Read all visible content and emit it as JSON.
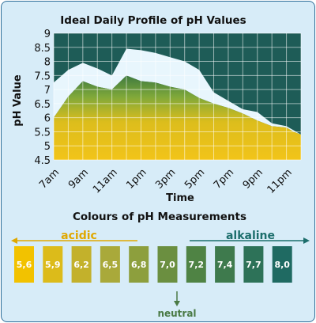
{
  "chart_data": {
    "type": "area",
    "title": "Ideal Daily Profile of pH Values",
    "xlabel": "Time",
    "ylabel": "pH Value",
    "ylim": [
      4.5,
      9
    ],
    "yticks": [
      "4.5",
      "5",
      "5.5",
      "6",
      "6.5",
      "7",
      "7.5",
      "8",
      "8.5",
      "9"
    ],
    "xticks": [
      "7am",
      "9am",
      "11am",
      "1pm",
      "3pm",
      "5pm",
      "7pm",
      "9pm",
      "11pm"
    ],
    "grid": true,
    "x_hours": [
      7,
      8,
      9,
      10,
      11,
      12,
      13,
      14,
      15,
      16,
      17,
      18,
      19,
      20,
      21,
      22,
      23,
      23.5,
      24
    ],
    "series": [
      {
        "name": "",
        "values": [
          7.25,
          7.7,
          7.95,
          7.75,
          7.5,
          8.45,
          8.4,
          8.3,
          8.15,
          8.0,
          7.7,
          6.9,
          6.6,
          6.3,
          6.2,
          5.8,
          5.7,
          5.55,
          5.4
        ]
      },
      {
        "name": "",
        "values": [
          6.0,
          6.75,
          7.3,
          7.1,
          7.0,
          7.5,
          7.3,
          7.25,
          7.1,
          7.0,
          6.7,
          6.5,
          6.35,
          6.15,
          5.9,
          5.7,
          5.65,
          5.5,
          5.4
        ]
      }
    ],
    "colors": {
      "plot_bg_top": "#1e5c57",
      "band_fill": "#e8f6fd",
      "lower_fill_top": "#5c9a3c",
      "lower_fill_bottom": "#f0c419",
      "frame_bg": "#d7ecf8"
    }
  },
  "scale": {
    "title": "Colours of pH Measurements",
    "acidic_label": "acidic",
    "alkaline_label": "alkaline",
    "neutral_label": "neutral",
    "chips": [
      {
        "label": "5,6",
        "color": "#f2c200"
      },
      {
        "label": "5,9",
        "color": "#dcbb1a"
      },
      {
        "label": "6,2",
        "color": "#c3b12b"
      },
      {
        "label": "6,5",
        "color": "#a9a93a"
      },
      {
        "label": "6,8",
        "color": "#8d9f3d"
      },
      {
        "label": "7,0",
        "color": "#6b8f40"
      },
      {
        "label": "7,2",
        "color": "#4f8344"
      },
      {
        "label": "7,4",
        "color": "#3e7a4d"
      },
      {
        "label": "7,7",
        "color": "#2d7258"
      },
      {
        "label": "8,0",
        "color": "#1f6a62"
      }
    ],
    "colors": {
      "acidic": "#e0a800",
      "alkaline": "#1c6e6c",
      "neutral": "#4a7a45"
    }
  }
}
